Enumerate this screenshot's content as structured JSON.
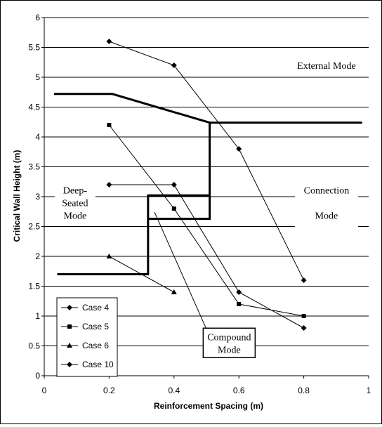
{
  "chart_data": {
    "type": "line",
    "xlabel": "Reinforcement Spacing (m)",
    "ylabel": "Critical Wall Height (m)",
    "xlim": [
      0,
      1
    ],
    "ylim": [
      0,
      6
    ],
    "x_ticks": [
      "0",
      "0.2",
      "0.4",
      "0.6",
      "0.8",
      "1"
    ],
    "y_ticks": [
      "0",
      "0.5",
      "1",
      "1.5",
      "2",
      "2.5",
      "3",
      "3.5",
      "4",
      "4.5",
      "5",
      "5.5",
      "6"
    ],
    "grid": "horizontal",
    "legend_position": "bottom-left",
    "series": [
      {
        "name": "Case 4",
        "marker": "diamond",
        "x": [
          0.2,
          0.4,
          0.6,
          0.8
        ],
        "y": [
          3.2,
          3.2,
          1.4,
          0.8
        ]
      },
      {
        "name": "Case 5",
        "marker": "square",
        "x": [
          0.2,
          0.4,
          0.6,
          0.8
        ],
        "y": [
          4.2,
          2.8,
          1.2,
          1.0
        ]
      },
      {
        "name": "Case 6",
        "marker": "triangle",
        "x": [
          0.2,
          0.4
        ],
        "y": [
          2.0,
          1.4
        ]
      },
      {
        "name": "Case 10",
        "marker": "diamond",
        "x": [
          0.2,
          0.4,
          0.6,
          0.8
        ],
        "y": [
          5.6,
          5.2,
          3.8,
          1.6
        ]
      }
    ],
    "boundaries": [
      {
        "x": [
          0.03,
          0.21,
          0.51,
          0.98
        ],
        "y": [
          4.72,
          4.72,
          4.24,
          4.24
        ]
      },
      {
        "x": [
          0.04,
          0.32,
          0.32,
          0.51,
          0.51
        ],
        "y": [
          1.7,
          1.7,
          3.02,
          3.02,
          4.24
        ]
      },
      {
        "x": [
          0.32,
          0.51,
          0.51
        ],
        "y": [
          2.63,
          2.63,
          3.02
        ]
      }
    ],
    "regions": [
      {
        "name": "external-mode-label",
        "lines": [
          "External Mode"
        ],
        "x": 0.87,
        "y": 5.2
      },
      {
        "name": "connection-mode-label",
        "lines": [
          "Connection",
          "Mode"
        ],
        "x": 0.87,
        "y": 2.9
      },
      {
        "name": "deep-seated-mode-label",
        "lines": [
          "Deep-",
          "Seated",
          "Mode"
        ],
        "x": 0.095,
        "y": 2.9
      },
      {
        "name": "compound-mode-label",
        "lines": [
          "Compound",
          "Mode"
        ],
        "x": 0.57,
        "y": 0.55
      }
    ],
    "pointers": [
      {
        "name": "compound-mode-pointer",
        "x": [
          0.34,
          0.5
        ],
        "y": [
          2.74,
          0.78
        ]
      }
    ]
  }
}
